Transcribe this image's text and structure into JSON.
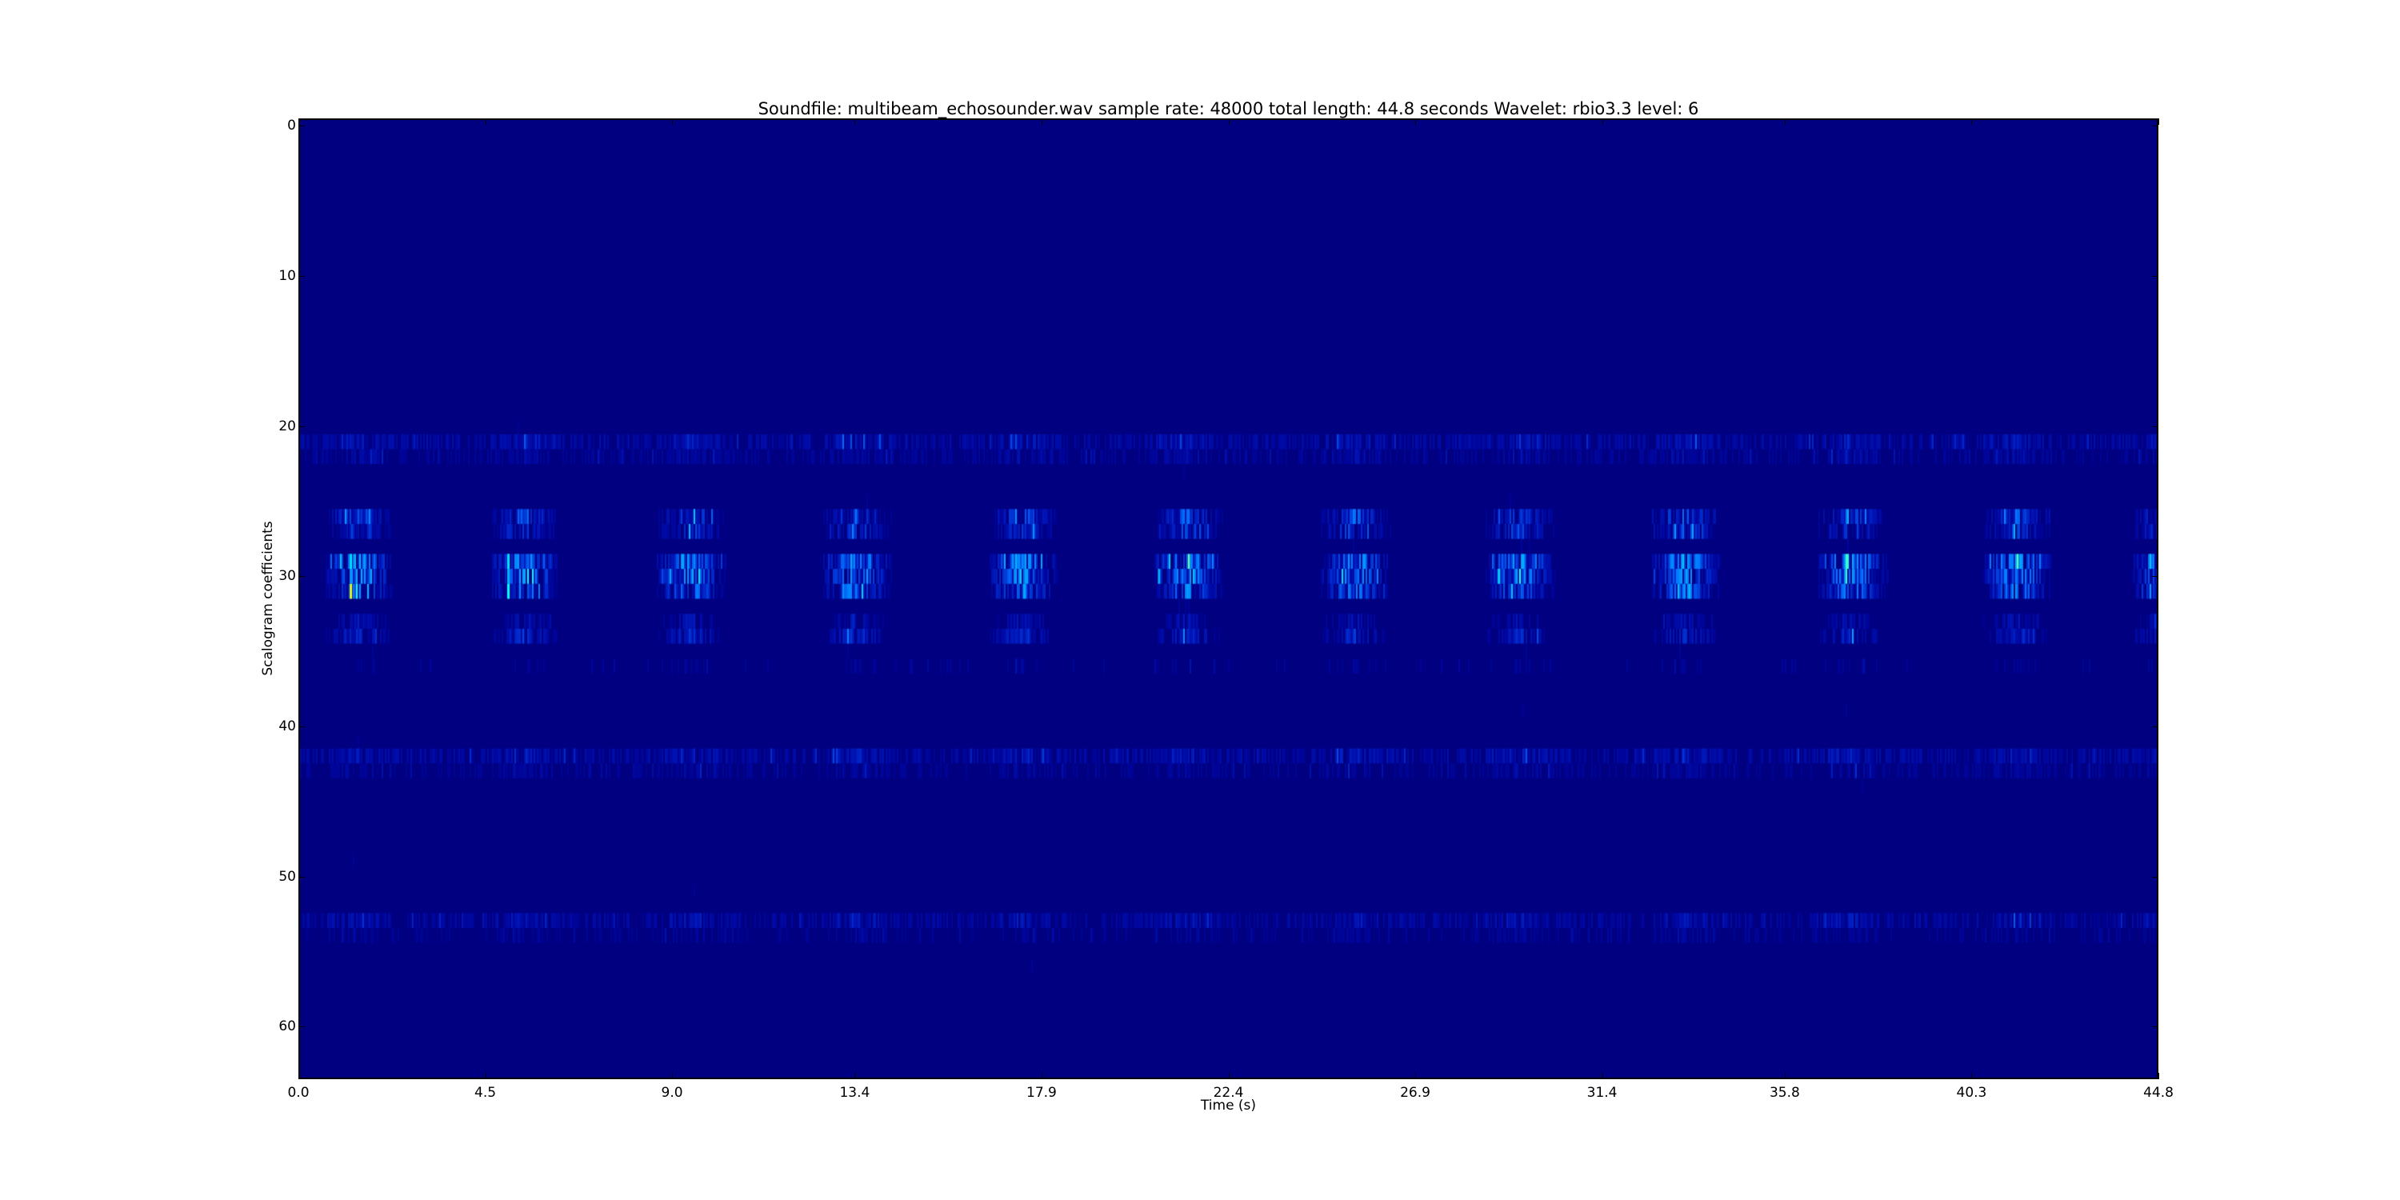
{
  "chart_data": {
    "type": "heatmap",
    "title": "Soundfile: multibeam_echosounder.wav sample rate: 48000 total length: 44.8 seconds   Wavelet: rbio3.3  level: 6",
    "xlabel": "Time (s)",
    "ylabel": "Scalogram coefficients",
    "xlim": [
      0.0,
      44.8
    ],
    "ylim": [
      63.5,
      -0.5
    ],
    "x_ticks": [
      "0.0",
      "4.5",
      "9.0",
      "13.4",
      "17.9",
      "22.4",
      "26.9",
      "31.4",
      "35.8",
      "40.3",
      "44.8"
    ],
    "y_ticks": [
      "0",
      "10",
      "20",
      "30",
      "40",
      "50",
      "60"
    ],
    "colormap": "jet",
    "background_color": "#000080",
    "rows": 64,
    "pulse_times_s": [
      1.0,
      5.0,
      9.0,
      13.0,
      17.0,
      21.0,
      25.0,
      29.0,
      33.0,
      37.0,
      41.0,
      44.6
    ],
    "active_rows": [
      21,
      22,
      26,
      27,
      29,
      30,
      31,
      34,
      42,
      53
    ],
    "peak_values_note_rows": [
      29,
      30,
      31
    ],
    "grid": false
  }
}
